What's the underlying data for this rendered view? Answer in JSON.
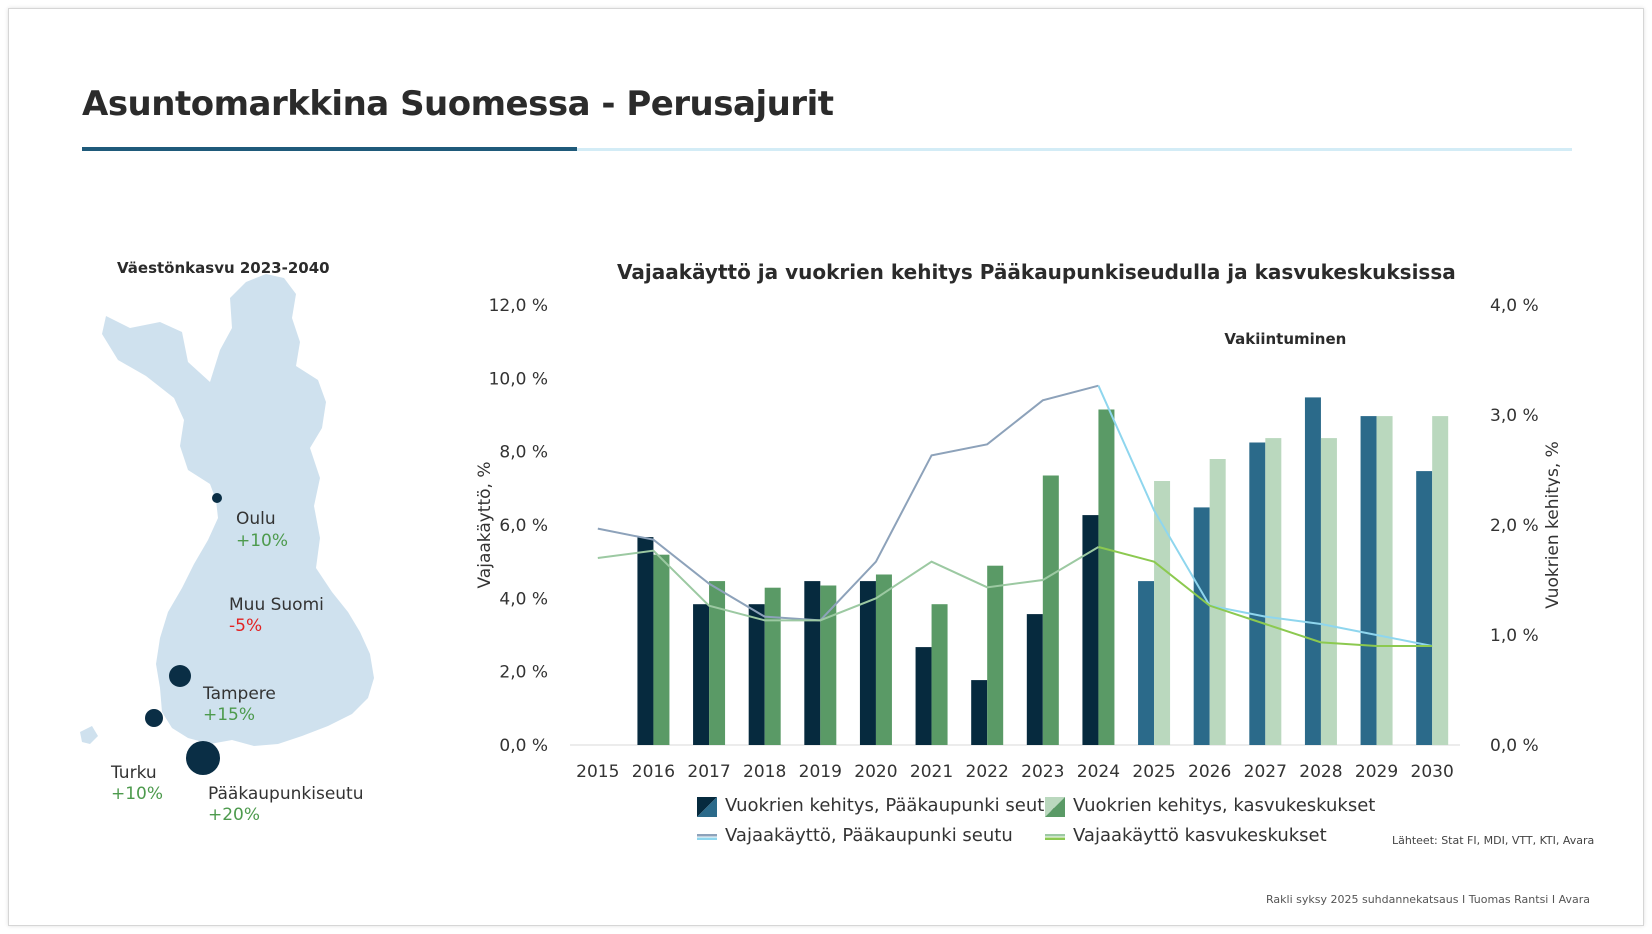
{
  "page": {
    "title": "Asuntomarkkina Suomessa - Perusajurit",
    "sources": "Lähteet: Stat FI, MDI, VTT, KTI, Avara",
    "footer": "Rakli syksy 2025 suhdannekatsaus I Tuomas Rantsi I Avara"
  },
  "map": {
    "title": "Väestönkasvu 2023-2040",
    "cities": [
      {
        "name": "Oulu",
        "change": "+10%"
      },
      {
        "name": "Muu Suomi",
        "change": "-5%"
      },
      {
        "name": "Tampere",
        "change": "+15%"
      },
      {
        "name": "Turku",
        "change": "+10%"
      },
      {
        "name": "Pääkaupunkiseutu",
        "change": "+20%"
      }
    ],
    "colors": {
      "land": "#cfe1ee",
      "dot": "#0a2e45",
      "positive": "#4d9a4d",
      "negative": "#e22222"
    }
  },
  "chart_data": {
    "type": "bar",
    "title": "Vajaakäyttö ja vuokrien kehitys Pääkaupunkiseudulla ja kasvukeskuksissa",
    "annotation": "Vakiintuminen",
    "categories": [
      "2015",
      "2016",
      "2017",
      "2018",
      "2019",
      "2020",
      "2021",
      "2022",
      "2023",
      "2024",
      "2025",
      "2026",
      "2027",
      "2028",
      "2029",
      "2030"
    ],
    "y_left": {
      "label": "Vajaakäyttö, %",
      "range": [
        0,
        12
      ],
      "ticks": [
        "0,0 %",
        "2,0 %",
        "4,0 %",
        "6,0 %",
        "8,0 %",
        "10,0 %",
        "12,0 %"
      ]
    },
    "y_right": {
      "label": "Vuokrien kehitys, %",
      "range": [
        0,
        4
      ],
      "ticks": [
        "0,0 %",
        "1,0 %",
        "2,0 %",
        "3,0 %",
        "4,0 %"
      ]
    },
    "grid": false,
    "legend_position": "bottom",
    "forecast_from": "2025",
    "series": [
      {
        "name": "Vuokrien kehitys, Pääkaupunki seutu",
        "kind": "bar",
        "axis": "right",
        "color": "#062a3e",
        "forecast_color": "#2b6a8a",
        "values": [
          null,
          1.89,
          1.28,
          1.28,
          1.49,
          1.49,
          0.89,
          0.59,
          1.19,
          2.09,
          1.49,
          2.16,
          2.75,
          3.16,
          2.99,
          2.49
        ]
      },
      {
        "name": "Vuokrien kehitys, kasvukeskukset",
        "kind": "bar",
        "axis": "right",
        "color": "#5a9a66",
        "forecast_color": "#bad8be",
        "values": [
          null,
          1.73,
          1.49,
          1.43,
          1.45,
          1.55,
          1.28,
          1.63,
          2.45,
          3.05,
          2.4,
          2.6,
          2.79,
          2.79,
          2.99,
          2.99
        ]
      },
      {
        "name": "Vajaakäyttö, Pääkaupunki seutu",
        "kind": "line",
        "axis": "left",
        "color": "#8da2ba",
        "forecast_color": "#8fd6ee",
        "values": [
          5.9,
          5.6,
          4.4,
          3.5,
          3.4,
          5.0,
          7.9,
          8.2,
          9.4,
          9.8,
          6.4,
          3.8,
          3.5,
          3.3,
          3.0,
          2.7
        ]
      },
      {
        "name": "Vajaakäyttö kasvukeskukset",
        "kind": "line",
        "axis": "left",
        "color": "#9cc9a2",
        "forecast_color": "#8cc950",
        "values": [
          5.1,
          5.3,
          3.8,
          3.4,
          3.4,
          4.0,
          5.0,
          4.3,
          4.5,
          5.4,
          5.0,
          3.8,
          3.3,
          2.8,
          2.7,
          2.7
        ]
      }
    ]
  }
}
